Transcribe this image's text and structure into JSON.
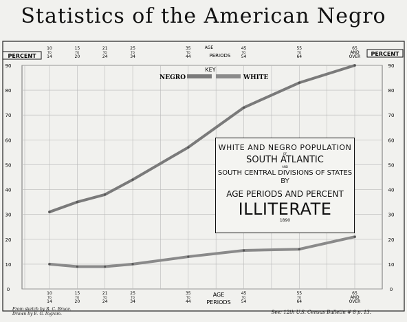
{
  "title": "Statistics of the American Negro",
  "chart_data": {
    "type": "line",
    "title": "White and Negro Population of South Atlantic and South Central Divisions of States by Age Periods — Percent Illiterate",
    "box_lines": {
      "line1": "WHITE AND NEGRO POPULATION",
      "line2a": "OF",
      "line2": "SOUTH ATLANTIC",
      "line3a": "AND",
      "line3": "SOUTH CENTRAL DIVISIONS OF STATES BY",
      "line4": "AGE PERIODS AND PERCENT",
      "line5": "ILLITERATE",
      "year": "1890"
    },
    "xlabel": "AGE PERIODS",
    "ylabel": "PERCENT",
    "key_label": "KEY",
    "categories": [
      {
        "top": "10",
        "mid": "TO",
        "bot": "14"
      },
      {
        "top": "15",
        "mid": "TO",
        "bot": "20"
      },
      {
        "top": "21",
        "mid": "TO",
        "bot": "24"
      },
      {
        "top": "25",
        "mid": "TO",
        "bot": "34"
      },
      {
        "top": "35",
        "mid": "TO",
        "bot": "44"
      },
      {
        "top": "45",
        "mid": "TO",
        "bot": "54"
      },
      {
        "top": "55",
        "mid": "TO",
        "bot": "64"
      },
      {
        "top": "65",
        "mid": "AND",
        "bot": "OVER"
      }
    ],
    "x_positions": [
      0,
      1,
      2,
      3,
      5,
      7,
      9,
      11
    ],
    "grid_columns": 12,
    "series": [
      {
        "name": "NEGRO",
        "color": "#7a7a7a",
        "values": [
          31,
          35,
          38,
          44,
          57,
          73,
          83,
          90
        ]
      },
      {
        "name": "WHITE",
        "color": "#8a8a8a",
        "values": [
          10,
          9,
          9,
          10,
          13,
          15.5,
          16,
          21
        ]
      }
    ],
    "ylim": [
      0,
      90
    ],
    "yticks": [
      0,
      10,
      20,
      30,
      40,
      50,
      60,
      70,
      80,
      90
    ],
    "grid": true,
    "legend": "top-left"
  },
  "credits": {
    "line1": "From sketch by R. C. Bruce.",
    "line2": "Drawn by E. G. Ingram."
  },
  "source": "See: 12th U.S. Census Bulletin # 8 p. 13."
}
